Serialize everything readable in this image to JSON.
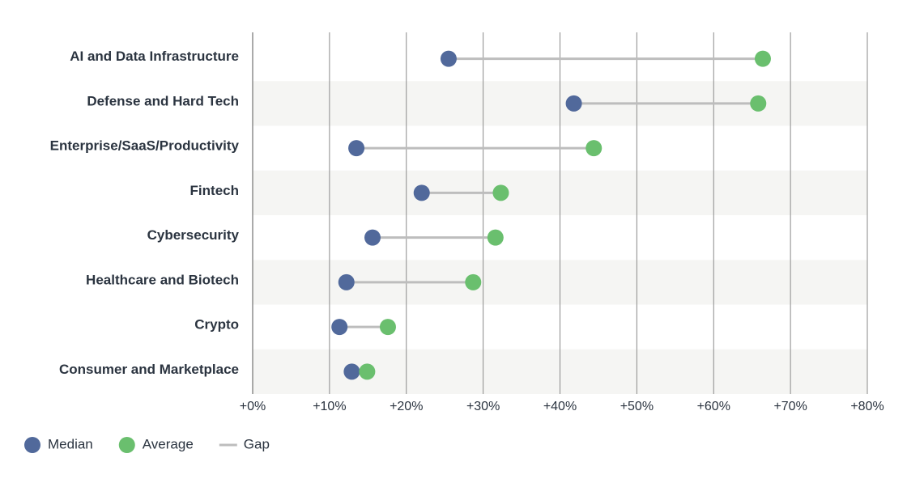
{
  "chart_data": {
    "type": "dumbbell",
    "categories": [
      "AI and Data Infrastructure",
      "Defense and Hard Tech",
      "Enterprise/SaaS/Productivity",
      "Fintech",
      "Cybersecurity",
      "Healthcare and Biotech",
      "Crypto",
      "Consumer and Marketplace"
    ],
    "series": [
      {
        "name": "Median",
        "color": "#51699b",
        "values": [
          25.5,
          41.8,
          13.5,
          22.0,
          15.6,
          12.2,
          11.3,
          12.9
        ]
      },
      {
        "name": "Average",
        "color": "#6abf6e",
        "values": [
          66.4,
          65.8,
          44.4,
          32.3,
          31.6,
          28.7,
          17.6,
          14.9
        ]
      }
    ],
    "gap_label": "Gap",
    "gap_color": "#bdbdbd",
    "xlim": [
      0,
      80
    ],
    "xticks": [
      {
        "value": 0,
        "label": "+0%"
      },
      {
        "value": 10,
        "label": "+10%"
      },
      {
        "value": 20,
        "label": "+20%"
      },
      {
        "value": 30,
        "label": "+30%"
      },
      {
        "value": 40,
        "label": "+40%"
      },
      {
        "value": 50,
        "label": "+50%"
      },
      {
        "value": 60,
        "label": "+60%"
      },
      {
        "value": 70,
        "label": "+70%"
      },
      {
        "value": 80,
        "label": "+80%"
      }
    ],
    "grid": true,
    "legend": "bottom-left"
  }
}
